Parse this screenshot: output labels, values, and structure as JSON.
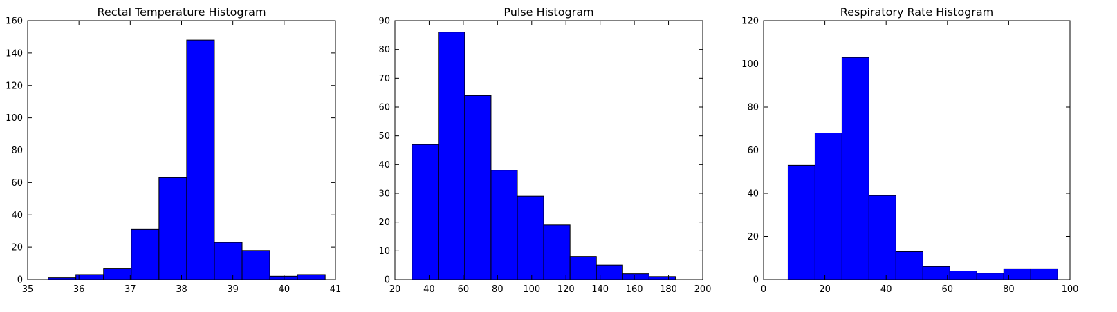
{
  "chart_data": [
    {
      "type": "bar",
      "title": "Rectal Temperature Histogram",
      "xlabel": "",
      "ylabel": "",
      "xlim": [
        35,
        41
      ],
      "ylim": [
        0,
        160
      ],
      "xticks": [
        35,
        36,
        37,
        38,
        39,
        40,
        41
      ],
      "yticks": [
        0,
        20,
        40,
        60,
        80,
        100,
        120,
        140,
        160
      ],
      "bin_edges": [
        35.4,
        35.94,
        36.48,
        37.02,
        37.56,
        38.1,
        38.64,
        39.18,
        39.72,
        40.26,
        40.8
      ],
      "values": [
        1,
        3,
        7,
        31,
        63,
        148,
        23,
        18,
        2,
        3
      ],
      "bar_color": "#0000ff",
      "grid": false
    },
    {
      "type": "bar",
      "title": "Pulse Histogram",
      "xlabel": "",
      "ylabel": "",
      "xlim": [
        20,
        200
      ],
      "ylim": [
        0,
        90
      ],
      "xticks": [
        20,
        40,
        60,
        80,
        100,
        120,
        140,
        160,
        180,
        200
      ],
      "yticks": [
        0,
        10,
        20,
        30,
        40,
        50,
        60,
        70,
        80,
        90
      ],
      "bin_edges": [
        30,
        45.4,
        60.8,
        76.2,
        91.6,
        107,
        122.4,
        137.8,
        153.2,
        168.6,
        184
      ],
      "values": [
        47,
        86,
        64,
        38,
        29,
        19,
        8,
        5,
        2,
        1
      ],
      "bar_color": "#0000ff",
      "grid": false
    },
    {
      "type": "bar",
      "title": "Respiratory Rate Histogram",
      "xlabel": "",
      "ylabel": "",
      "xlim": [
        0,
        100
      ],
      "ylim": [
        0,
        120
      ],
      "xticks": [
        0,
        20,
        40,
        60,
        80,
        100
      ],
      "yticks": [
        0,
        20,
        40,
        60,
        80,
        100,
        120
      ],
      "bin_edges": [
        8,
        16.8,
        25.6,
        34.4,
        43.2,
        52,
        60.8,
        69.6,
        78.4,
        87.2,
        96
      ],
      "values": [
        53,
        68,
        103,
        39,
        13,
        6,
        4,
        3,
        5,
        5
      ],
      "bar_color": "#0000ff",
      "grid": false
    }
  ]
}
